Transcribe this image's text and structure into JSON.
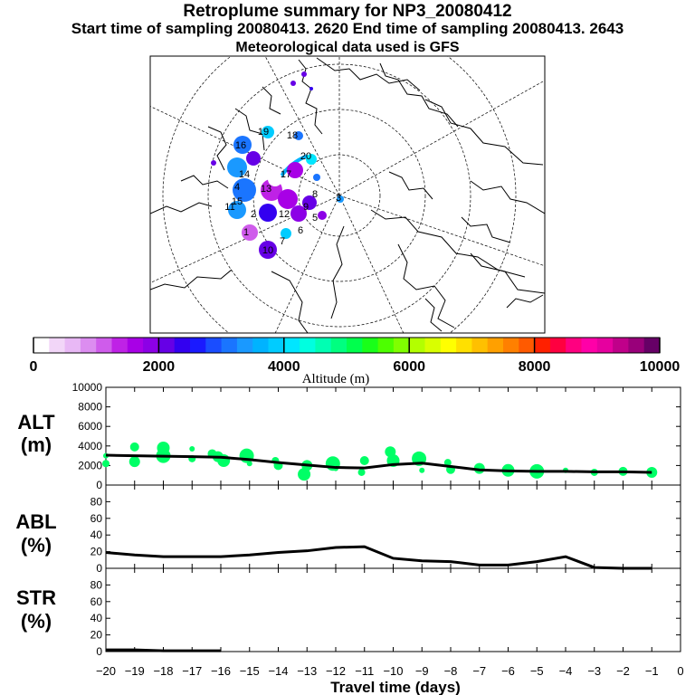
{
  "header": {
    "title": "Retroplume summary for NP3_20080412",
    "sampling_line": "Start time of sampling 20080413.  2620     End time of sampling 20080413.  2643",
    "met_line": "Meteorological data used is GFS"
  },
  "colorbar": {
    "tick_labels": [
      "0",
      "2000",
      "4000",
      "6000",
      "8000",
      "10000"
    ],
    "label": "Altitude  (m)",
    "colors": [
      "#ffffff",
      "#f2d6f8",
      "#e8b8f5",
      "#dc8df0",
      "#cf5ceb",
      "#bf22e6",
      "#a800e6",
      "#8c00e6",
      "#6600e6",
      "#3300f0",
      "#1a1aff",
      "#1a4dff",
      "#1a75ff",
      "#1a99ff",
      "#00b3ff",
      "#00ccff",
      "#00e6ff",
      "#00ffe0",
      "#00ffb3",
      "#00ff80",
      "#00ff4d",
      "#19ff19",
      "#4dff00",
      "#80ff00",
      "#b3ff00",
      "#d9ff00",
      "#ffff00",
      "#ffe000",
      "#ffc000",
      "#ffa000",
      "#ff8000",
      "#ff5a00",
      "#ff2000",
      "#ff0040",
      "#ff0080",
      "#ff00a8",
      "#e6009f",
      "#c0008a",
      "#99007a",
      "#660066"
    ]
  },
  "map": {
    "markers": [
      {
        "label": "19",
        "kind": "plume"
      },
      {
        "label": "18",
        "kind": "plume"
      },
      {
        "label": "16",
        "kind": "plume"
      },
      {
        "label": "15",
        "kind": "plume"
      },
      {
        "label": "17",
        "kind": "plume"
      },
      {
        "label": "20",
        "kind": "plume"
      },
      {
        "label": "14",
        "kind": "plume"
      },
      {
        "label": "13",
        "kind": "plume"
      },
      {
        "label": "12",
        "kind": "plume"
      },
      {
        "label": "11",
        "kind": "plume"
      },
      {
        "label": "10",
        "kind": "plume"
      },
      {
        "label": "9",
        "kind": "plume"
      },
      {
        "label": "8",
        "kind": "plume"
      },
      {
        "label": "7",
        "kind": "plume"
      },
      {
        "label": "6",
        "kind": "plume"
      },
      {
        "label": "5",
        "kind": "plume"
      },
      {
        "label": "4",
        "kind": "plume"
      },
      {
        "label": "3",
        "kind": "plume"
      },
      {
        "label": "2",
        "kind": "plume"
      },
      {
        "label": "1",
        "kind": "plume"
      }
    ]
  },
  "chart_data": [
    {
      "type": "line",
      "panel": "ALT",
      "ylabel_lines": [
        "ALT",
        "(m)"
      ],
      "ylim": [
        0,
        10000
      ],
      "yticks": [
        0,
        2000,
        4000,
        6000,
        8000,
        10000
      ],
      "x": [
        -20,
        -19,
        -18,
        -17,
        -16,
        -15,
        -14,
        -13,
        -12,
        -11,
        -10,
        -9,
        -8,
        -7,
        -6,
        -5,
        -4,
        -3,
        -2,
        -1
      ],
      "values": [
        3050,
        3000,
        2950,
        2900,
        2850,
        2600,
        2300,
        2050,
        1800,
        1750,
        2100,
        2250,
        1900,
        1550,
        1450,
        1400,
        1400,
        1350,
        1350,
        1300
      ],
      "scatter": {
        "name": "plume members",
        "x": [
          -20,
          -20,
          -19,
          -19,
          -18,
          -18,
          -17,
          -17,
          -16.3,
          -16.1,
          -15.9,
          -15.1,
          -15,
          -14.1,
          -14,
          -13,
          -13.1,
          -12.1,
          -12,
          -11.1,
          -11,
          -10.1,
          -10,
          -9.1,
          -9,
          -8.1,
          -8,
          -7,
          -6,
          -5,
          -4,
          -3,
          -2,
          -1
        ],
        "y": [
          3000,
          2200,
          3900,
          2400,
          3800,
          3000,
          3700,
          2700,
          3200,
          2900,
          2500,
          3000,
          2200,
          2500,
          2000,
          2000,
          1100,
          2200,
          1700,
          1300,
          2500,
          3400,
          2500,
          2700,
          1500,
          2300,
          1600,
          1700,
          1500,
          1400,
          1500,
          1300,
          1400,
          1300
        ],
        "color": "#00ff66"
      }
    },
    {
      "type": "line",
      "panel": "ABL",
      "ylabel_lines": [
        "ABL",
        "(%)"
      ],
      "ylim": [
        0,
        100
      ],
      "yticks": [
        0,
        20,
        40,
        60,
        80
      ],
      "x": [
        -20,
        -19,
        -18,
        -17,
        -16,
        -15,
        -14,
        -13,
        -12,
        -11,
        -10,
        -9,
        -8,
        -7,
        -6,
        -5,
        -4,
        -3,
        -2,
        -1
      ],
      "values": [
        19,
        16,
        14,
        14,
        14,
        16,
        19,
        21,
        25,
        26,
        12,
        9,
        8,
        4,
        4,
        8,
        14,
        1,
        0,
        0
      ]
    },
    {
      "type": "line",
      "panel": "STR",
      "ylabel_lines": [
        "STR",
        "(%)"
      ],
      "ylim": [
        0,
        100
      ],
      "yticks": [
        0,
        20,
        40,
        60,
        80
      ],
      "x": [
        -20,
        -19,
        -18,
        -17,
        -16
      ],
      "values": [
        2,
        2,
        1,
        1,
        1
      ]
    }
  ],
  "x_axis": {
    "ticks": [
      -20,
      -19,
      -18,
      -17,
      -16,
      -15,
      -14,
      -13,
      -12,
      -11,
      -10,
      -9,
      -8,
      -7,
      -6,
      -5,
      -4,
      -3,
      -2,
      -1,
      0
    ],
    "tick_labels": [
      "−20",
      "−19",
      "−18",
      "−17",
      "−16",
      "−15",
      "−14",
      "−13",
      "−12",
      "−11",
      "−10",
      "−9",
      "−8",
      "−7",
      "−6",
      "−5",
      "−4",
      "−3",
      "−2",
      "−1",
      "0"
    ],
    "label": "Travel time (days)"
  }
}
